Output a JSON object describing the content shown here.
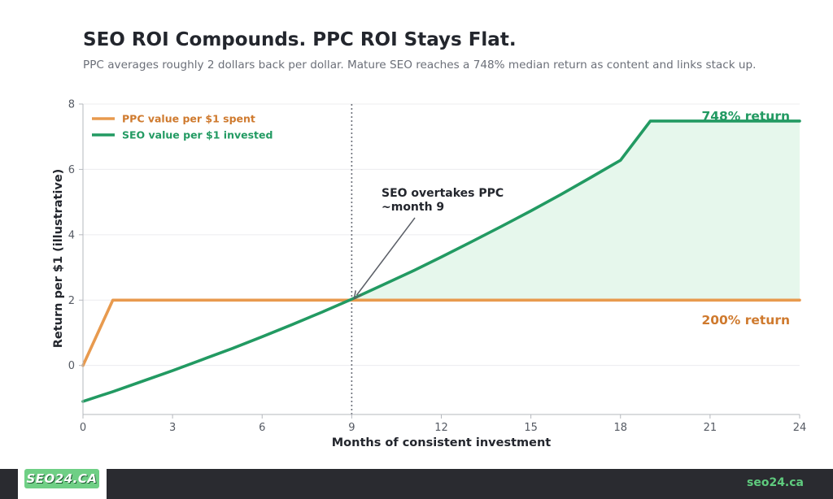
{
  "header": {
    "title": "SEO ROI Compounds. PPC ROI Stays Flat.",
    "subtitle": "PPC averages roughly 2 dollars back per dollar. Mature SEO reaches a 748% median return as content and links stack up."
  },
  "chart_data": {
    "type": "line",
    "xlabel": "Months of consistent investment",
    "ylabel": "Return per $1 (illustrative)",
    "xlim": [
      0,
      24
    ],
    "ylim": [
      -1.5,
      8
    ],
    "x_ticks": [
      0,
      3,
      6,
      9,
      12,
      15,
      18,
      21,
      24
    ],
    "y_ticks": [
      0,
      2,
      4,
      6,
      8
    ],
    "grid": "horizontal",
    "legend_position": "top-left",
    "series": [
      {
        "name": "PPC value per $1 spent",
        "color": "#e89a4e",
        "label_color": "#cf7a2e",
        "points": [
          [
            0,
            0
          ],
          [
            1,
            2
          ],
          [
            24,
            2
          ]
        ]
      },
      {
        "name": "SEO value per $1 invested",
        "color": "#229a62",
        "label_color": "#229a62",
        "points": [
          [
            0,
            -1.1
          ],
          [
            1,
            -0.8
          ],
          [
            2,
            -0.48
          ],
          [
            3,
            -0.16
          ],
          [
            4,
            0.18
          ],
          [
            5,
            0.52
          ],
          [
            6,
            0.88
          ],
          [
            7,
            1.25
          ],
          [
            8,
            1.63
          ],
          [
            9,
            2.03
          ],
          [
            10,
            2.45
          ],
          [
            11,
            2.87
          ],
          [
            12,
            3.32
          ],
          [
            13,
            3.78
          ],
          [
            14,
            4.25
          ],
          [
            15,
            4.73
          ],
          [
            16,
            5.23
          ],
          [
            17,
            5.75
          ],
          [
            18,
            6.28
          ],
          [
            19,
            7.48
          ],
          [
            24,
            7.48
          ]
        ]
      }
    ],
    "fill_between": {
      "from_x": 9,
      "to_x": 24,
      "color": "#e6f7ec"
    },
    "vline": {
      "x": 9,
      "color": "#6b6f78"
    },
    "annotations": {
      "crossover": {
        "line1": "SEO overtakes PPC",
        "line2": "~month 9",
        "target": [
          9,
          2
        ]
      },
      "seo_end": {
        "text": "748% return",
        "color": "#229a62"
      },
      "ppc_end": {
        "text": "200% return",
        "color": "#cf7a2e"
      }
    }
  },
  "footer": {
    "logo_text": "SEO24.CA",
    "url": "seo24.ca"
  }
}
